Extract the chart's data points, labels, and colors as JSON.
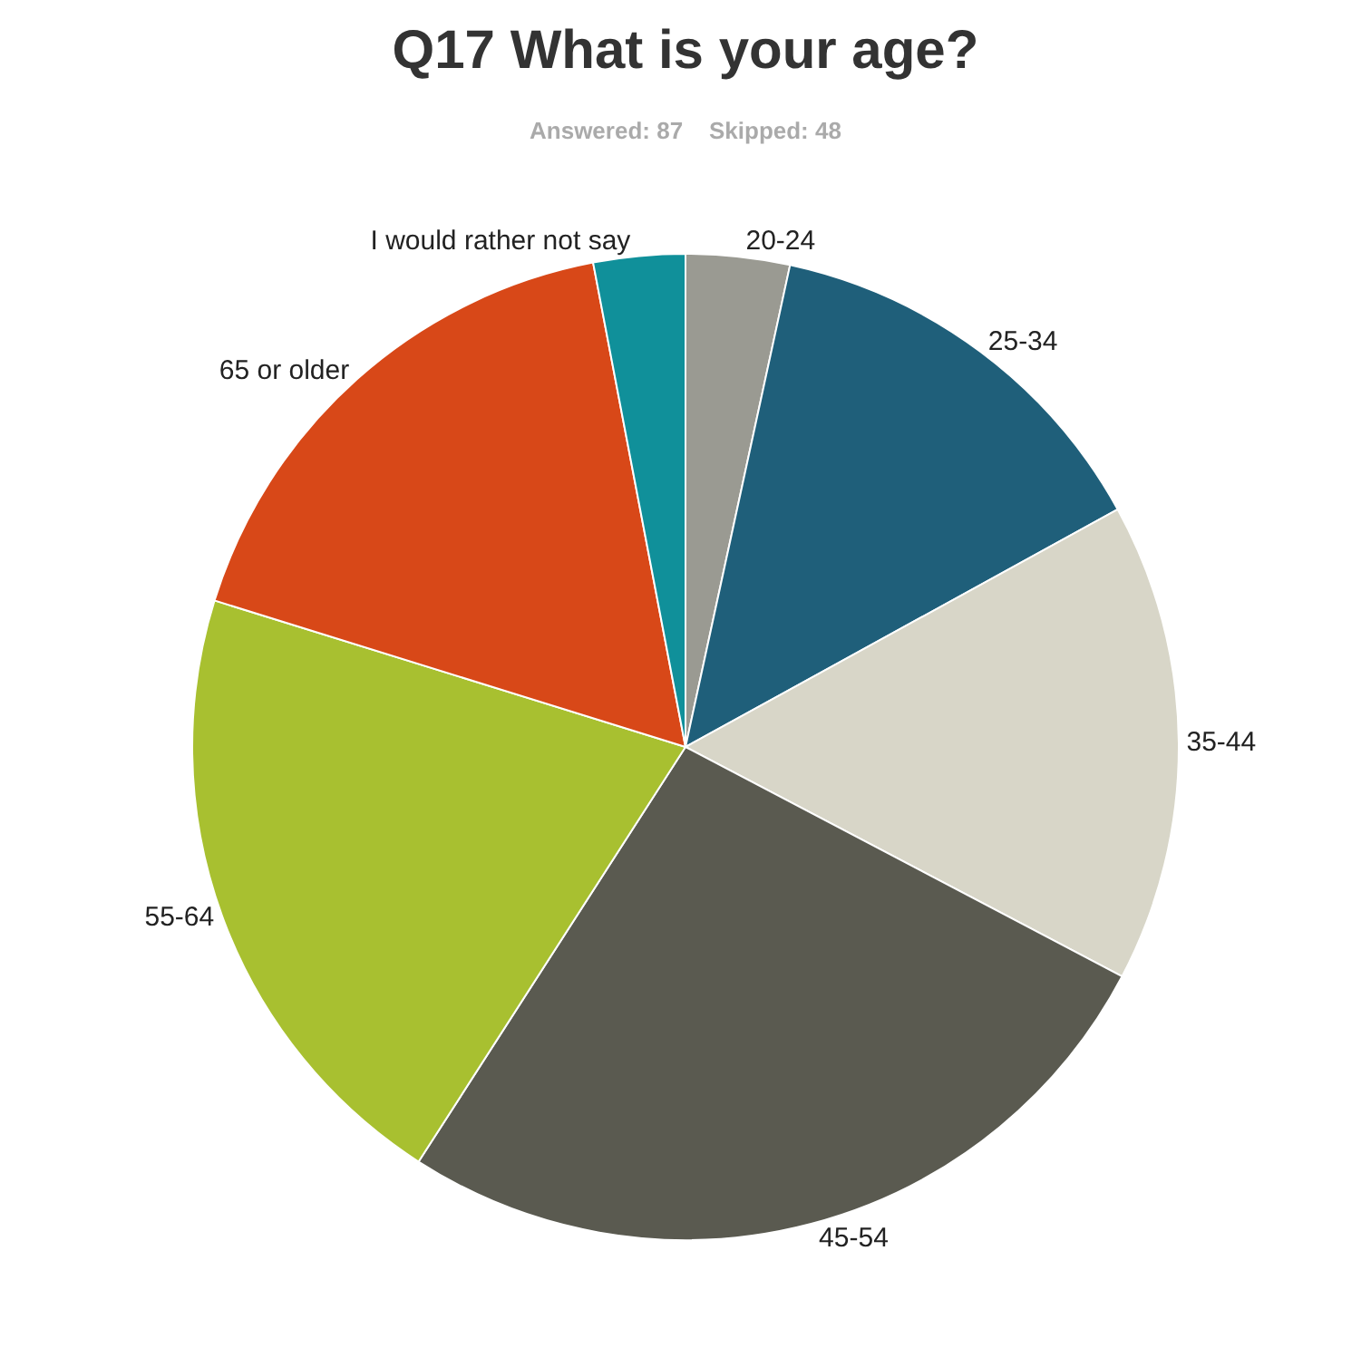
{
  "chart_data": {
    "type": "pie",
    "title": "Q17 What is your age?",
    "subtitle": "Answered: 87    Skipped: 48",
    "categories": [
      "20-24",
      "25-34",
      "35-44",
      "45-54",
      "55-64",
      "65 or older",
      "I would rather not say"
    ],
    "values": [
      3.4,
      13.6,
      15.7,
      26.4,
      20.7,
      17.2,
      3.0
    ],
    "colors": [
      "#9a9a92",
      "#1f5f7a",
      "#d8d6c8",
      "#5a5a50",
      "#a8c030",
      "#d84818",
      "#10909a"
    ],
    "legend": false
  }
}
